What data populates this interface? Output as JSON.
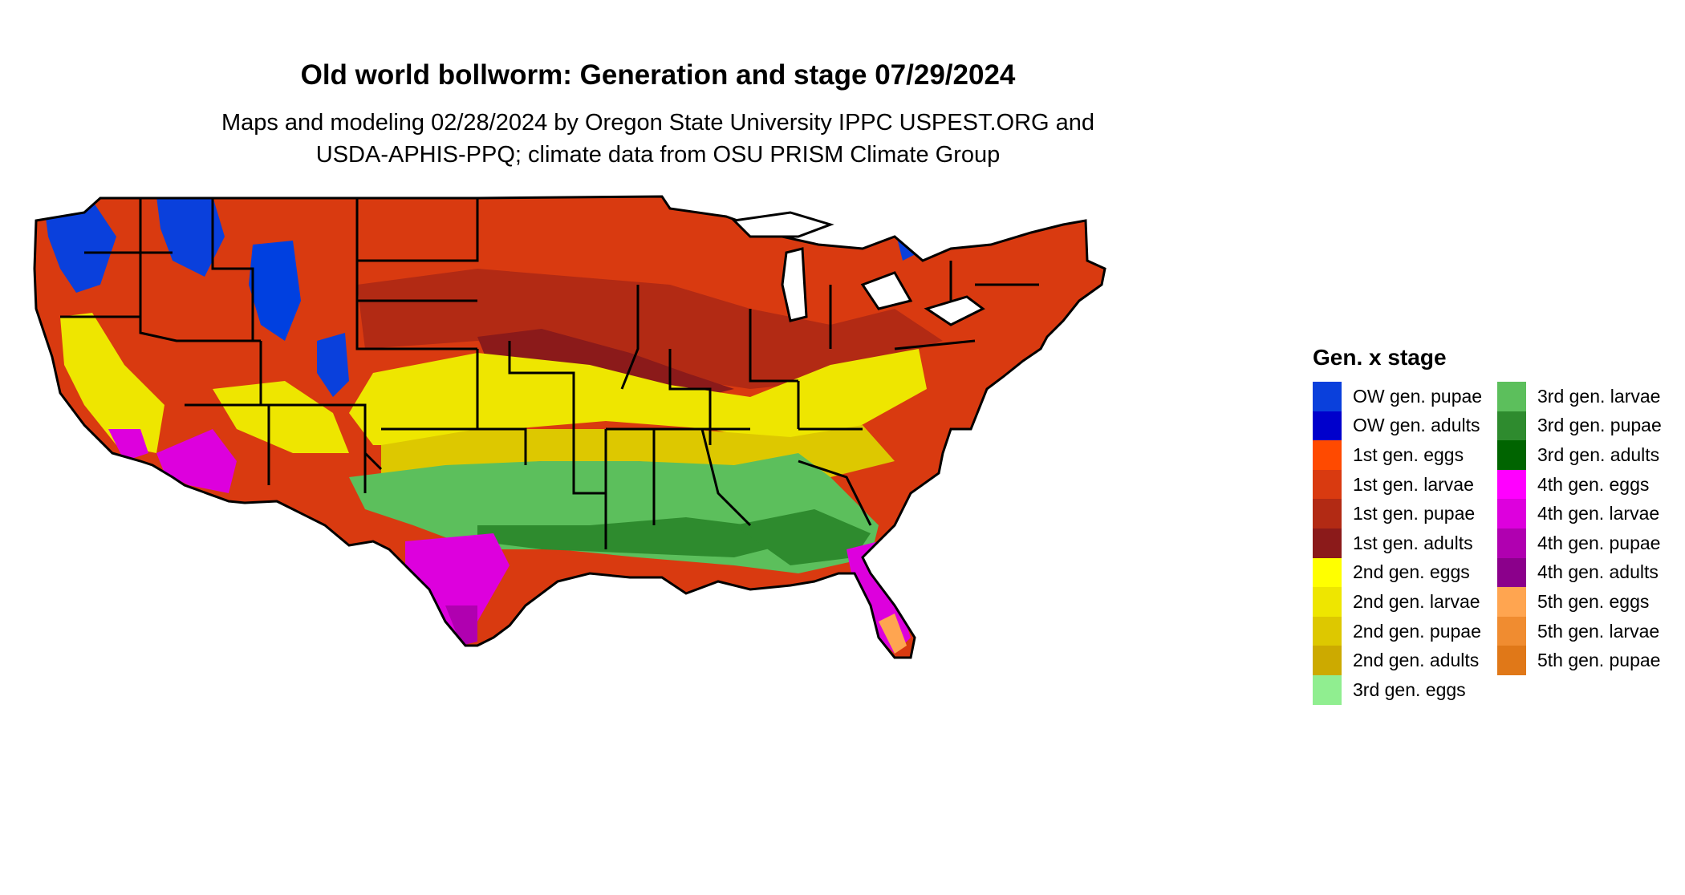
{
  "title": "Old world bollworm: Generation and stage 07/29/2024",
  "subtitle_line1": "Maps and modeling 02/28/2024 by Oregon State University IPPC USPEST.ORG and",
  "subtitle_line2": "USDA-APHIS-PPQ; climate data from OSU PRISM Climate Group",
  "legend": {
    "title": "Gen. x stage",
    "column1": [
      {
        "label": "OW gen. pupae",
        "color": "#0a40dc"
      },
      {
        "label": "OW gen. adults",
        "color": "#0000cc"
      },
      {
        "label": "1st gen. eggs",
        "color": "#ff4a00"
      },
      {
        "label": "1st gen. larvae",
        "color": "#d93a10"
      },
      {
        "label": "1st gen. pupae",
        "color": "#b22a14"
      },
      {
        "label": "1st gen. adults",
        "color": "#8b1a1a"
      },
      {
        "label": "2nd gen. eggs",
        "color": "#ffff00"
      },
      {
        "label": "2nd gen. larvae",
        "color": "#eee600"
      },
      {
        "label": "2nd gen. pupae",
        "color": "#ddc800"
      },
      {
        "label": "2nd gen. adults",
        "color": "#ccaa00"
      },
      {
        "label": "3rd gen. eggs",
        "color": "#90ee90"
      }
    ],
    "column2": [
      {
        "label": "3rd gen. larvae",
        "color": "#5cbf5c"
      },
      {
        "label": "3rd gen. pupae",
        "color": "#2e8b2e"
      },
      {
        "label": "3rd gen. adults",
        "color": "#006400"
      },
      {
        "label": "4th gen. eggs",
        "color": "#ff00ff"
      },
      {
        "label": "4th gen. larvae",
        "color": "#dd00dd"
      },
      {
        "label": "4th gen. pupae",
        "color": "#b000b0"
      },
      {
        "label": "4th gen. adults",
        "color": "#8b008b"
      },
      {
        "label": "5th gen. eggs",
        "color": "#ffa550"
      },
      {
        "label": "5th gen. larvae",
        "color": "#f08c30"
      },
      {
        "label": "5th gen. pupae",
        "color": "#e07818"
      }
    ]
  }
}
